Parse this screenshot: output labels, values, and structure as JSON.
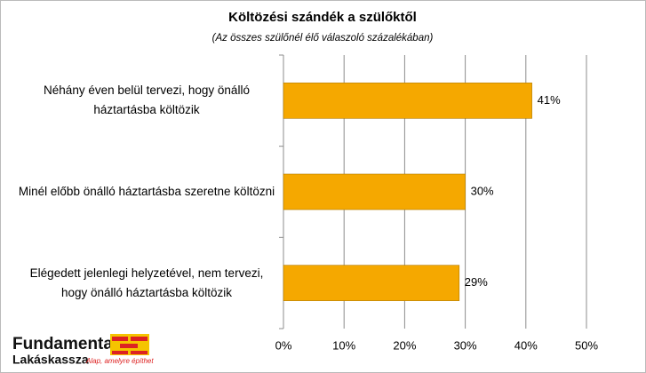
{
  "chart_data": {
    "type": "barh",
    "title": "Költözési szándék a szülőktől",
    "subtitle": "(Az összes szülőnél élő válaszoló százalékában)",
    "categories": [
      "Néhány éven belül tervezi, hogy önálló háztartásba költözik",
      "Minél előbb önálló háztartásba szeretne költözni",
      "Elégedett jelenlegi helyzetével, nem tervezi, hogy önálló háztartásba költözik"
    ],
    "values": [
      41,
      30,
      29
    ],
    "value_labels": [
      "41%",
      "30%",
      "29%"
    ],
    "color": "#f5a800",
    "xlim": [
      0,
      50
    ],
    "xticks": [
      {
        "value": 0,
        "label": "0%"
      },
      {
        "value": 10,
        "label": "10%"
      },
      {
        "value": 20,
        "label": "20%"
      },
      {
        "value": 30,
        "label": "30%"
      },
      {
        "value": 40,
        "label": "40%"
      },
      {
        "value": 50,
        "label": "50%"
      }
    ],
    "grid": true
  },
  "logo": {
    "name": "Fundamenta",
    "subname": "Lakáskassza",
    "slogan": "Alap, amelyre építhet"
  }
}
